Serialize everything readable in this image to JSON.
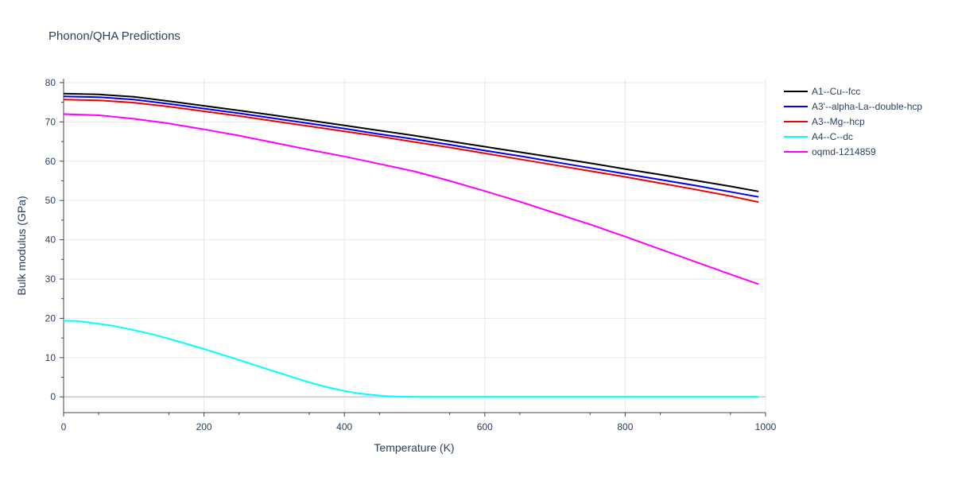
{
  "chart_data": {
    "type": "line",
    "title": "Phonon/QHA Predictions",
    "xlabel": "Temperature (K)",
    "ylabel": "Bulk modulus (GPa)",
    "xlim": [
      0,
      1000
    ],
    "ylim": [
      -4,
      81
    ],
    "x_ticks": [
      0,
      200,
      400,
      600,
      800,
      1000
    ],
    "y_ticks": [
      0,
      10,
      20,
      30,
      40,
      50,
      60,
      70,
      80
    ],
    "grid": true,
    "legend_position": "top-right",
    "series": [
      {
        "name": "A1--Cu--fcc",
        "color": "#000000",
        "x": [
          0,
          50,
          100,
          150,
          200,
          250,
          300,
          350,
          400,
          450,
          500,
          550,
          600,
          650,
          700,
          750,
          800,
          850,
          900,
          950,
          990
        ],
        "y": [
          77.2,
          77.0,
          76.4,
          75.3,
          74.1,
          72.9,
          71.7,
          70.4,
          69.1,
          67.8,
          66.5,
          65.1,
          63.7,
          62.3,
          60.9,
          59.5,
          58.0,
          56.6,
          55.1,
          53.6,
          52.3
        ]
      },
      {
        "name": "A3'--alpha-La--double-hcp",
        "color": "#0000ee",
        "x": [
          0,
          50,
          100,
          150,
          200,
          250,
          300,
          350,
          400,
          450,
          500,
          550,
          600,
          650,
          700,
          750,
          800,
          850,
          900,
          950,
          990
        ],
        "y": [
          76.5,
          76.3,
          75.7,
          74.6,
          73.4,
          72.2,
          70.9,
          69.6,
          68.3,
          66.9,
          65.6,
          64.2,
          62.7,
          61.3,
          59.8,
          58.3,
          56.8,
          55.3,
          53.8,
          52.2,
          50.9
        ]
      },
      {
        "name": "A3--Mg--hcp",
        "color": "#ee0000",
        "x": [
          0,
          50,
          100,
          150,
          200,
          250,
          300,
          350,
          400,
          450,
          500,
          550,
          600,
          650,
          700,
          750,
          800,
          850,
          900,
          950,
          990
        ],
        "y": [
          75.7,
          75.5,
          74.9,
          73.9,
          72.7,
          71.5,
          70.2,
          68.9,
          67.6,
          66.3,
          64.9,
          63.5,
          62.0,
          60.5,
          59.0,
          57.5,
          56.0,
          54.4,
          52.8,
          51.1,
          49.6
        ]
      },
      {
        "name": "A4--C--dc",
        "color": "#00ffff",
        "x": [
          0,
          20,
          50,
          70,
          100,
          130,
          160,
          200,
          250,
          300,
          350,
          375,
          400,
          420,
          440,
          460,
          480,
          500,
          600,
          700,
          800,
          900,
          990
        ],
        "y": [
          19.4,
          19.3,
          18.6,
          18.1,
          17.0,
          15.8,
          14.3,
          12.2,
          9.4,
          6.5,
          3.7,
          2.5,
          1.5,
          0.9,
          0.5,
          0.2,
          0.05,
          0.0,
          0.0,
          0.0,
          0.0,
          0.0,
          0.0
        ]
      },
      {
        "name": "oqmd-1214859",
        "color": "#ff00ff",
        "x": [
          0,
          50,
          100,
          150,
          200,
          250,
          300,
          350,
          400,
          450,
          500,
          550,
          600,
          650,
          700,
          750,
          800,
          850,
          900,
          950,
          990
        ],
        "y": [
          72.0,
          71.7,
          70.8,
          69.6,
          68.1,
          66.5,
          64.7,
          62.9,
          61.2,
          59.3,
          57.4,
          55.0,
          52.4,
          49.7,
          46.8,
          43.9,
          40.8,
          37.6,
          34.4,
          31.2,
          28.7
        ]
      }
    ]
  }
}
